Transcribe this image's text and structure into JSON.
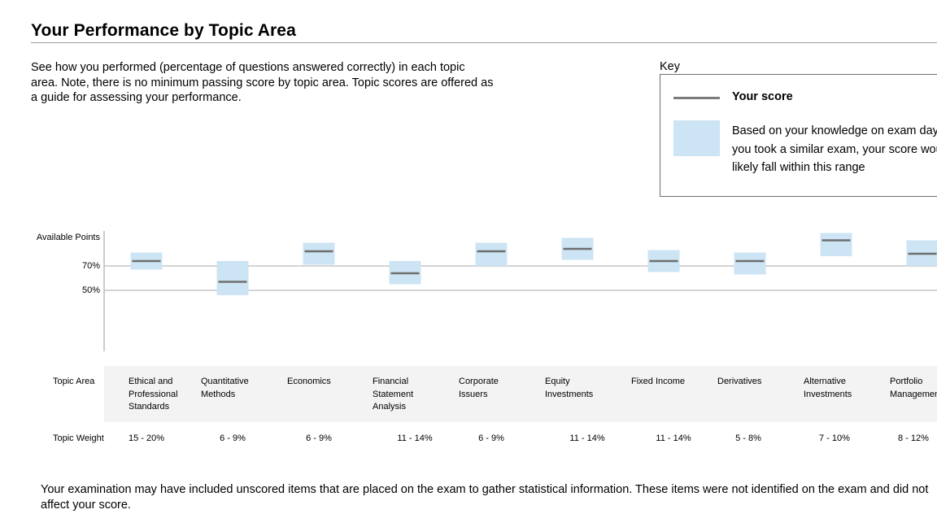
{
  "page": {
    "title": "Your Performance by Topic Area",
    "intro": [
      "See how you performed (percentage of questions answered correctly) in each topic",
      "area. Note, there is no minimum passing score by topic area. Topic scores are offered as",
      "a guide for assessing your performance."
    ],
    "footnote": [
      "Your examination may have included unscored items that are placed on the exam to gather statistical information. These items were not identified on the exam and did not",
      "affect your score."
    ]
  },
  "key": {
    "label": "Key",
    "score_label": "Your score",
    "range_lines": [
      "Based on your knowledge on exam day, if",
      "you took a similar exam, your score would",
      "likely fall within this range"
    ]
  },
  "table": {
    "topic_area_label": "Topic Area",
    "topic_weight_label": "Topic Weight"
  },
  "colors": {
    "range_fill": "#cce4f4",
    "score_line": "#6e6e6e",
    "reference_line": "#a9a9a9"
  },
  "chart_data": {
    "type": "range-and-score",
    "y_axis_title": "Available Points",
    "reference_lines": [
      {
        "label": "70%",
        "value": 70
      },
      {
        "label": "50%",
        "value": 50
      }
    ],
    "ylim": [
      0,
      100
    ],
    "topics": [
      {
        "name_lines": [
          "Ethical and",
          "Professional",
          "Standards"
        ],
        "weight": "15 - 20%",
        "score": 74,
        "range": [
          67,
          81
        ]
      },
      {
        "name_lines": [
          "Quantitative",
          "Methods"
        ],
        "weight": "6 - 9%",
        "score": 57,
        "range": [
          46,
          74
        ]
      },
      {
        "name_lines": [
          "Economics"
        ],
        "weight": "6 - 9%",
        "score": 82,
        "range": [
          71,
          89
        ]
      },
      {
        "name_lines": [
          "Financial",
          "Statement",
          "Analysis"
        ],
        "weight": "11 - 14%",
        "score": 64,
        "range": [
          55,
          74
        ]
      },
      {
        "name_lines": [
          "Corporate",
          "Issuers"
        ],
        "weight": "6 - 9%",
        "score": 82,
        "range": [
          70,
          89
        ]
      },
      {
        "name_lines": [
          "Equity",
          "Investments"
        ],
        "weight": "11 - 14%",
        "score": 84,
        "range": [
          75,
          93
        ]
      },
      {
        "name_lines": [
          "Fixed Income"
        ],
        "weight": "11 - 14%",
        "score": 74,
        "range": [
          65,
          83
        ]
      },
      {
        "name_lines": [
          "Derivatives"
        ],
        "weight": "5 - 8%",
        "score": 74,
        "range": [
          63,
          81
        ]
      },
      {
        "name_lines": [
          "Alternative",
          "Investments"
        ],
        "weight": "7 - 10%",
        "score": 91,
        "range": [
          78,
          97
        ]
      },
      {
        "name_lines": [
          "Portfolio",
          "Management"
        ],
        "weight": "8 - 12%",
        "score": 80,
        "range": [
          70,
          91
        ]
      }
    ]
  }
}
